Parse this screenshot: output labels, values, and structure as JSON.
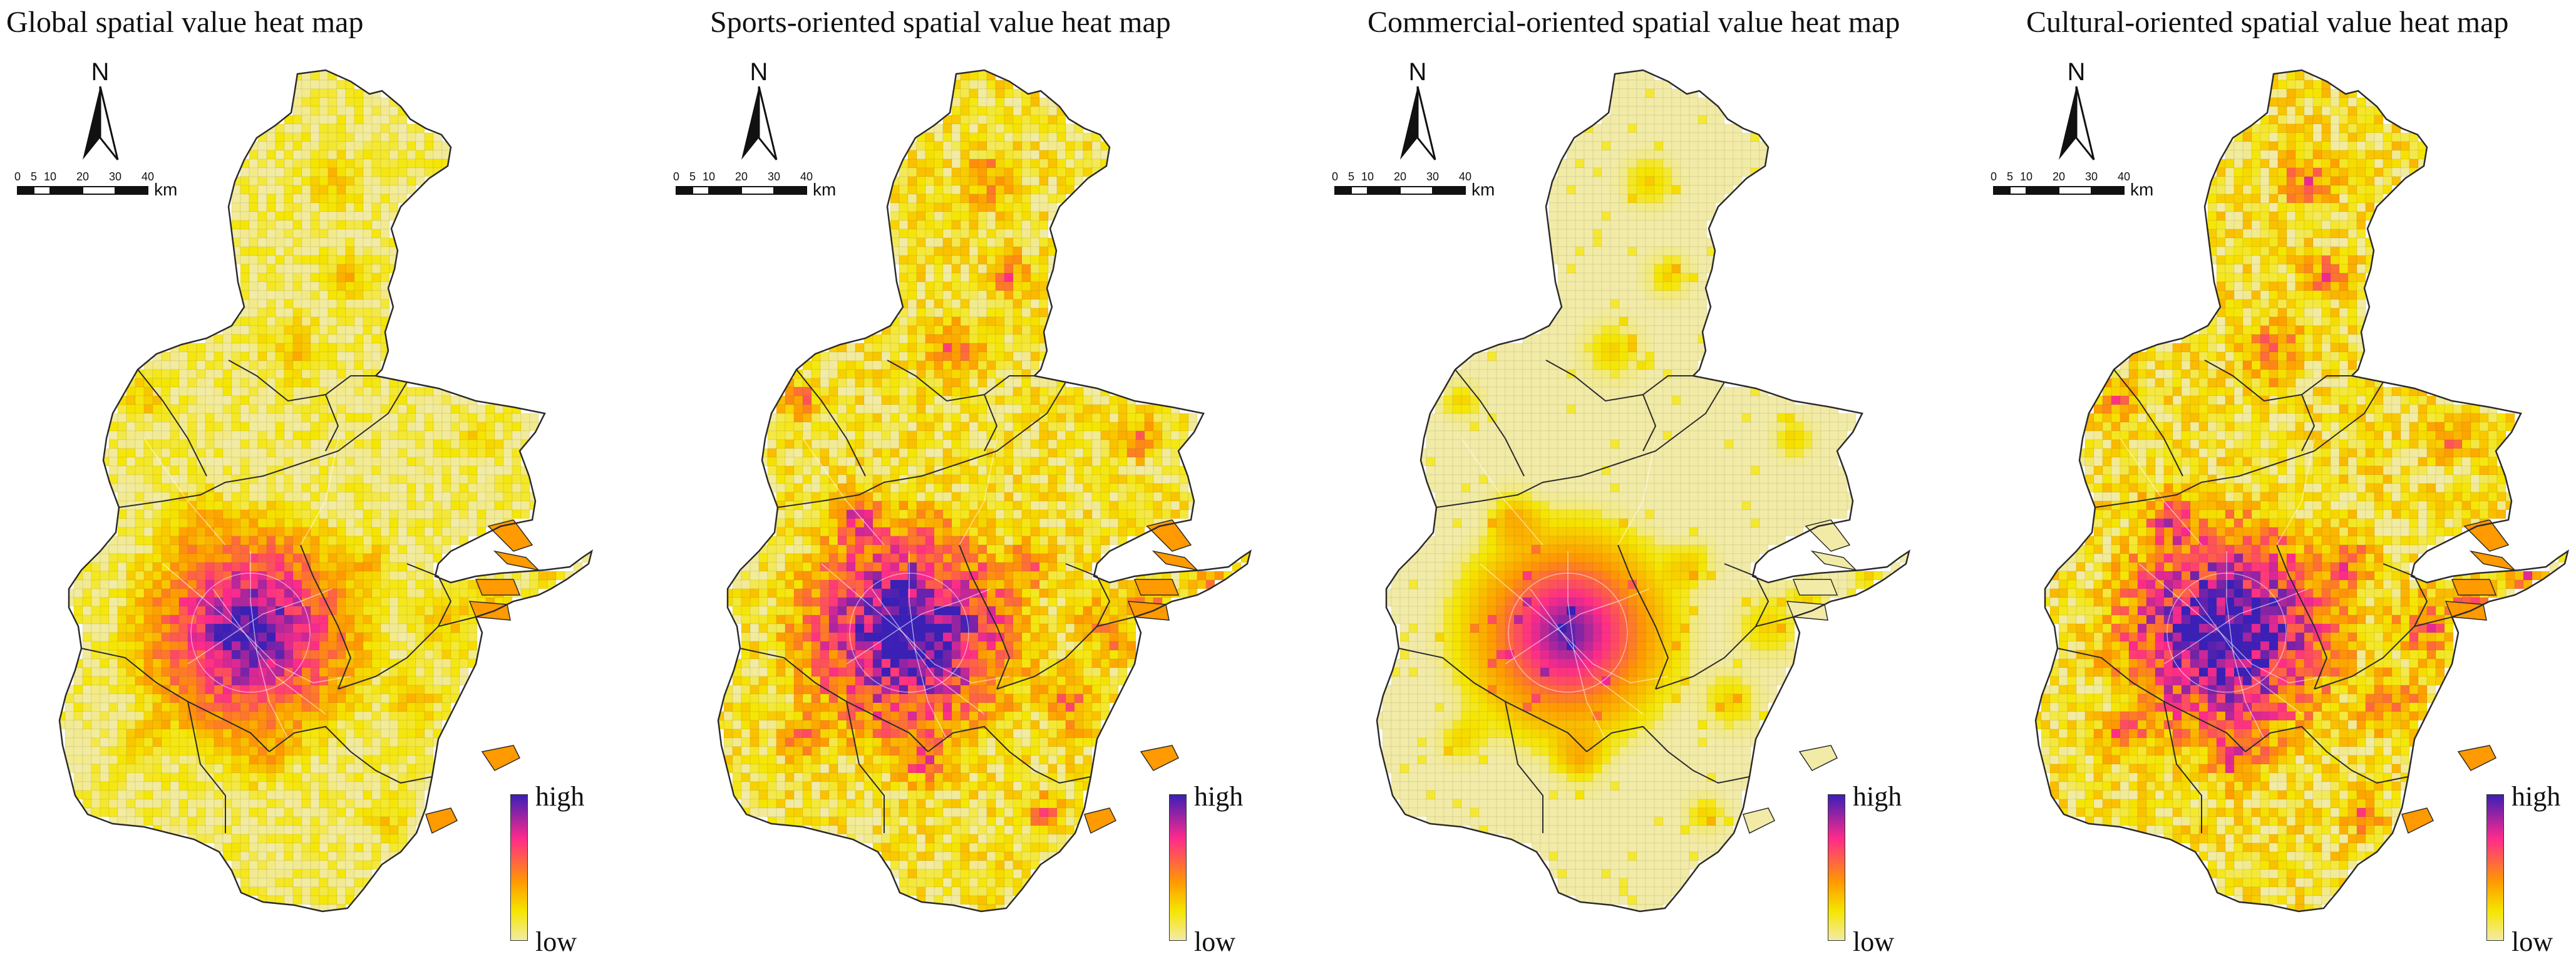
{
  "figure": {
    "panels": [
      {
        "id": "global",
        "title": "Global spatial value heat map",
        "intensity": 0.45
      },
      {
        "id": "sports",
        "title": "Sports-oriented spatial value heat map",
        "intensity": 0.7
      },
      {
        "id": "commercial",
        "title": "Commercial-oriented spatial value heat map",
        "intensity": 0.12
      },
      {
        "id": "cultural",
        "title": "Cultural-oriented spatial value heat map",
        "intensity": 0.75
      }
    ],
    "north_arrow_label": "N",
    "scale_bar": {
      "ticks": [
        "0",
        "5",
        "10",
        "20",
        "30",
        "40"
      ],
      "unit": "km"
    },
    "legend": {
      "high_label": "high",
      "low_label": "low"
    },
    "colors": {
      "low": "#f2eba8",
      "mid_low": "#f5e600",
      "mid": "#ff9a00",
      "mid_high": "#ff2a8c",
      "high": "#3a1fb8",
      "boundary": "#2b2b2b",
      "road": "#ffffff"
    }
  }
}
